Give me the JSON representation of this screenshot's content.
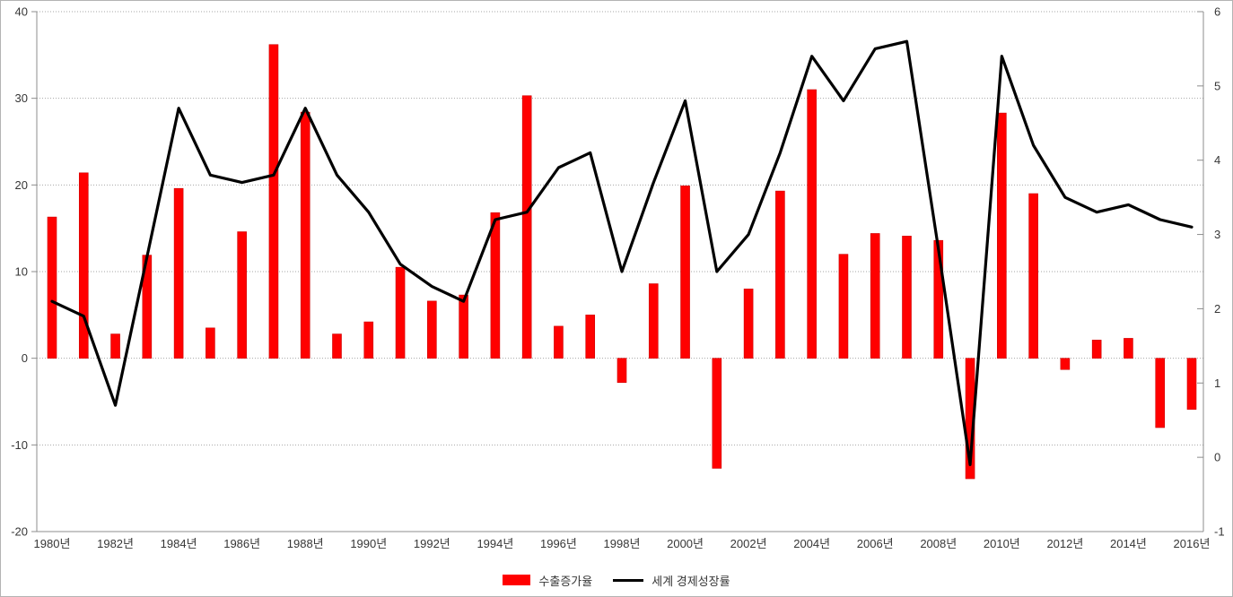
{
  "chart_data": {
    "type": "combo_bar_line",
    "categories": [
      1980,
      1981,
      1982,
      1983,
      1984,
      1985,
      1986,
      1987,
      1988,
      1989,
      1990,
      1991,
      1992,
      1993,
      1994,
      1995,
      1996,
      1997,
      1998,
      1999,
      2000,
      2001,
      2002,
      2003,
      2004,
      2005,
      2006,
      2007,
      2008,
      2009,
      2010,
      2011,
      2012,
      2013,
      2014,
      2015,
      2016
    ],
    "x_tick_labels": [
      "1980년",
      "1982년",
      "1984년",
      "1986년",
      "1988년",
      "1990년",
      "1992년",
      "1994년",
      "1996년",
      "1998년",
      "2000년",
      "2002년",
      "2004년",
      "2006년",
      "2008년",
      "2010년",
      "2012년",
      "2014년",
      "2016년"
    ],
    "x_tick_every": 2,
    "series": [
      {
        "name": "수출증가율",
        "kind": "bar",
        "axis": "left",
        "color": "#ff0000",
        "border_color": "#cc0000",
        "values": [
          16.3,
          21.4,
          2.8,
          11.9,
          19.6,
          3.5,
          14.6,
          36.2,
          28.4,
          2.8,
          4.2,
          10.5,
          6.6,
          7.3,
          16.8,
          30.3,
          3.7,
          5.0,
          -2.8,
          8.6,
          19.9,
          -12.7,
          8.0,
          19.3,
          31.0,
          12.0,
          14.4,
          14.1,
          13.6,
          -13.9,
          28.3,
          19.0,
          -1.3,
          2.1,
          2.3,
          -8.0,
          -5.9
        ]
      },
      {
        "name": "세계 경제성장률",
        "kind": "line",
        "axis": "right",
        "color": "#000000",
        "values": [
          2.1,
          1.9,
          0.7,
          2.7,
          4.7,
          3.8,
          3.7,
          3.8,
          4.7,
          3.8,
          3.3,
          2.6,
          2.3,
          2.1,
          3.2,
          3.3,
          3.9,
          4.1,
          2.5,
          3.7,
          4.8,
          2.5,
          3.0,
          4.1,
          5.4,
          4.8,
          5.5,
          5.6,
          2.8,
          -0.1,
          5.4,
          4.2,
          3.5,
          3.3,
          3.4,
          3.2,
          3.1
        ]
      }
    ],
    "left_axis": {
      "min": -20,
      "max": 40,
      "ticks": [
        40,
        30,
        20,
        10,
        0,
        -10,
        -20
      ]
    },
    "right_axis": {
      "min": -1,
      "max": 6,
      "ticks": [
        6,
        5,
        4,
        3,
        2,
        1,
        0,
        -1
      ]
    },
    "grid": {
      "style": "dotted",
      "color": "#a6a6a6"
    },
    "axis_line_color": "#8c8c8c",
    "legend": {
      "position": "bottom",
      "items": [
        "수출증가율",
        "세계 경제성장률"
      ]
    }
  }
}
